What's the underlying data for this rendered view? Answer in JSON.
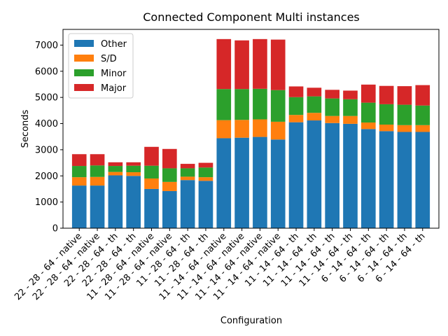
{
  "chart_data": {
    "type": "bar",
    "stacked": true,
    "title": "Connected Component Multi instances",
    "xlabel": "Configuration",
    "ylabel": "Seconds",
    "ylim": [
      0,
      7600
    ],
    "yticks": [
      0,
      1000,
      2000,
      3000,
      4000,
      5000,
      6000,
      7000
    ],
    "legend_position": "top-left",
    "grid": false,
    "categories": [
      "22 - 28 - 64 - native",
      "22 - 28 - 64 - native",
      "22 - 28 - 64 - th",
      "22 - 28 - 64 - th",
      "11 - 28 - 64 - native",
      "11 - 28 - 64 - native",
      "11 - 28 - 64 - th",
      "11 - 28 - 64 - th",
      "11 - 14 - 64 - native",
      "11 - 14 - 64 - native",
      "11 - 14 - 64 - native",
      "11 - 14 - 64 - native",
      "11 - 14 - 64 - th",
      "11 - 14 - 64 - th",
      "11 - 14 - 64 - th",
      "11 - 14 - 64 - th",
      "6 - 14 - 64 - th",
      "6 - 14 - 64 - th",
      "6 - 14 - 64 - th",
      "6 - 14 - 64 - th"
    ],
    "series": [
      {
        "name": "Other",
        "color": "#1f77b4",
        "values": [
          1630,
          1630,
          2020,
          2000,
          1500,
          1420,
          1840,
          1810,
          3440,
          3460,
          3490,
          3390,
          4050,
          4120,
          4020,
          3990,
          3790,
          3710,
          3680,
          3680
        ]
      },
      {
        "name": "S/D",
        "color": "#ff7f0e",
        "values": [
          320,
          330,
          130,
          140,
          400,
          350,
          130,
          140,
          690,
          680,
          670,
          680,
          280,
          290,
          270,
          300,
          250,
          250,
          260,
          260
        ]
      },
      {
        "name": "Minor",
        "color": "#2ca02c",
        "values": [
          430,
          440,
          230,
          250,
          490,
          520,
          320,
          370,
          1190,
          1180,
          1170,
          1210,
          680,
          630,
          670,
          640,
          760,
          780,
          780,
          750
        ]
      },
      {
        "name": "Major",
        "color": "#d62728",
        "values": [
          450,
          430,
          140,
          130,
          720,
          740,
          170,
          180,
          1910,
          1860,
          1900,
          1930,
          410,
          330,
          330,
          330,
          690,
          700,
          710,
          780
        ]
      }
    ]
  }
}
